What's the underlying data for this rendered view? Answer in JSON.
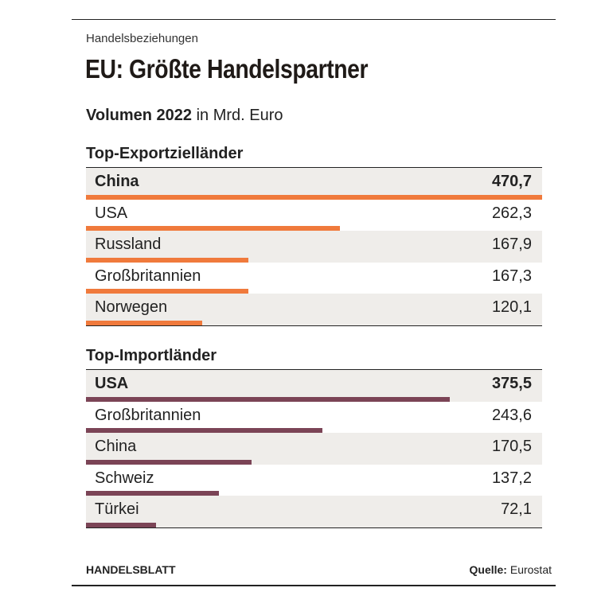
{
  "kicker": "Handelsbeziehungen",
  "title": "EU: Größte Handelspartner",
  "subtitle": {
    "strong": "Volumen 2022",
    "rest": " in Mrd. Euro"
  },
  "colors": {
    "export_bar": "#f07a3c",
    "import_bar": "#7b4456",
    "row_shade": "#efedea"
  },
  "footer": {
    "brand": "HANDELSBLATT",
    "source_label": "Quelle:",
    "source": " Eurostat"
  },
  "chart_data": [
    {
      "type": "bar",
      "title": "Top-Exportzielländer",
      "categories": [
        "China",
        "USA",
        "Russland",
        "Großbritannien",
        "Norwegen"
      ],
      "values": [
        470.7,
        262.3,
        167.9,
        167.3,
        120.1
      ],
      "value_labels": [
        "470,7",
        "262,3",
        "167,9",
        "167,3",
        "120,1"
      ],
      "xlim": [
        0,
        470.7
      ]
    },
    {
      "type": "bar",
      "title": "Top-Importländer",
      "categories": [
        "USA",
        "Großbritannien",
        "China",
        "Schweiz",
        "Türkei"
      ],
      "values": [
        375.5,
        243.6,
        170.5,
        137.2,
        72.1
      ],
      "value_labels": [
        "375,5",
        "243,6",
        "170,5",
        "137,2",
        "72,1"
      ],
      "xlim": [
        0,
        470.7
      ]
    }
  ]
}
